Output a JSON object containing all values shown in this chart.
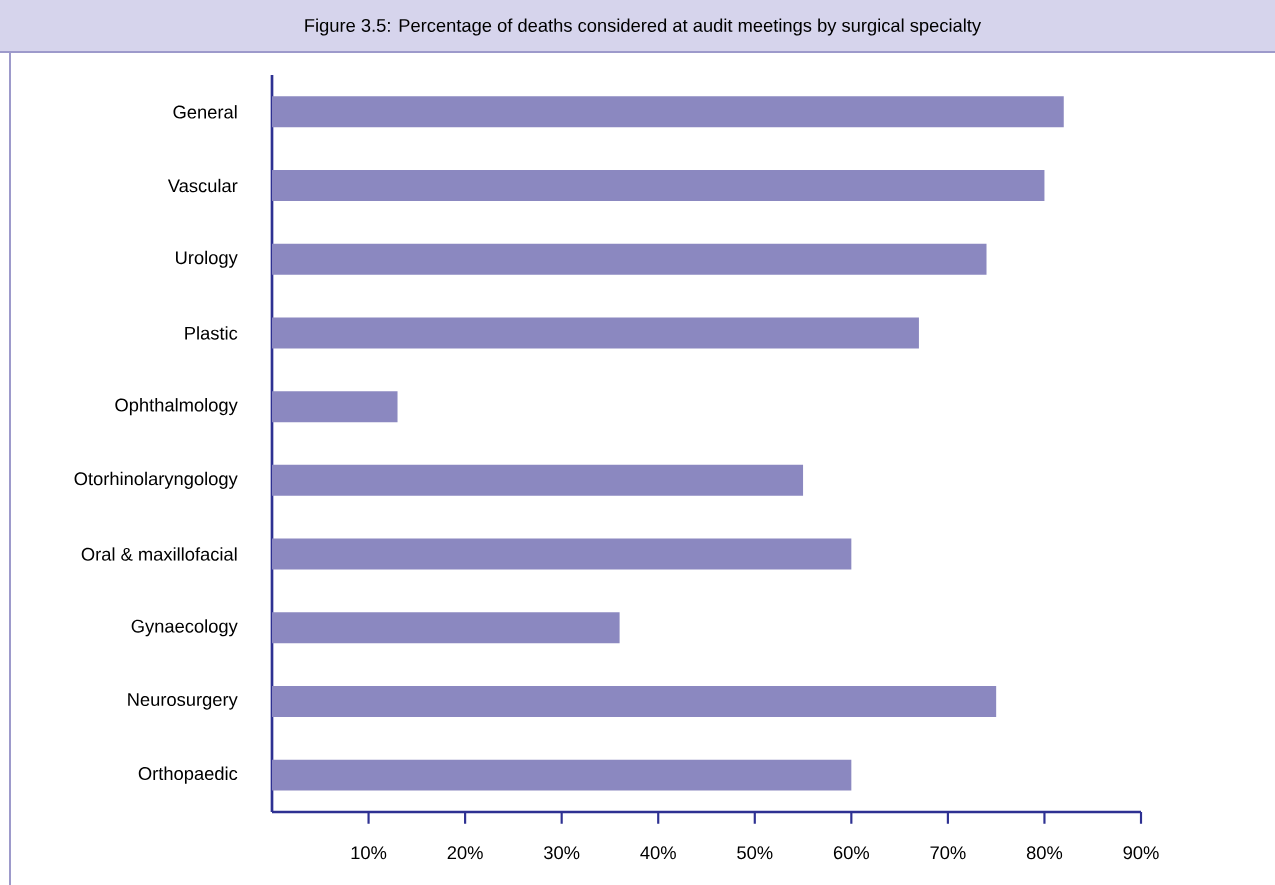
{
  "chart_data": {
    "type": "bar",
    "orientation": "horizontal",
    "title": "Figure 3.5: Percentage of deaths considered at audit meetings by surgical specialty",
    "categories": [
      "General",
      "Vascular",
      "Urology",
      "Plastic",
      "Ophthalmology",
      "Otorhinolaryngology",
      "Oral & maxillofacial",
      "Gynaecology",
      "Neurosurgery",
      "Orthopaedic"
    ],
    "values": [
      82,
      80,
      74,
      67,
      13,
      55,
      60,
      36,
      75,
      60
    ],
    "color": "#8b88c0",
    "xlim": [
      0,
      90
    ],
    "xticks": [
      {
        "value": 10,
        "label": "10%"
      },
      {
        "value": 20,
        "label": "20%"
      },
      {
        "value": 30,
        "label": "30%"
      },
      {
        "value": 40,
        "label": "40%"
      },
      {
        "value": 50,
        "label": "50%"
      },
      {
        "value": 60,
        "label": "60%"
      },
      {
        "value": 70,
        "label": "70%"
      },
      {
        "value": 80,
        "label": "80%"
      },
      {
        "value": 90,
        "label": "90%"
      }
    ],
    "grid": false
  }
}
